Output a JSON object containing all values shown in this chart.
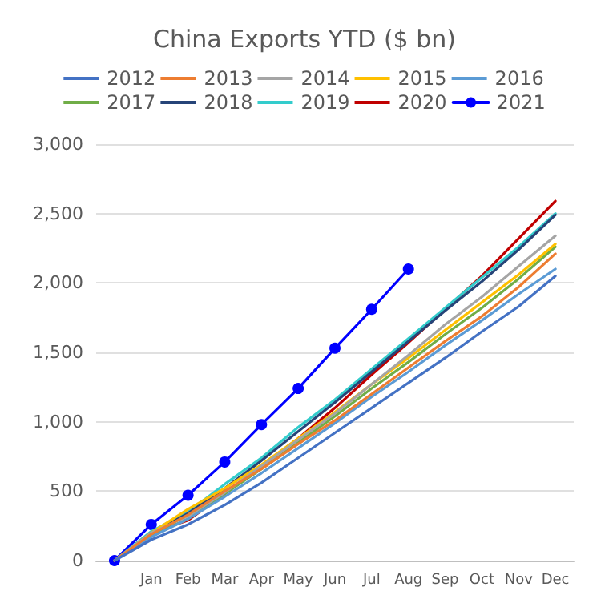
{
  "chart_data": {
    "type": "line",
    "title": "China Exports YTD ($ bn)",
    "categories": [
      null,
      "Jan",
      "Feb",
      "Mar",
      "Apr",
      "May",
      "Jun",
      "Jul",
      "Aug",
      "Sep",
      "Oct",
      "Nov",
      "Dec"
    ],
    "ylim": [
      0,
      3000
    ],
    "yticks": [
      0,
      500,
      {
        "value": 1000,
        "label": "1,000"
      },
      {
        "value": 1500,
        "label": "1,500"
      },
      {
        "value": 2000,
        "label": "2,000"
      },
      {
        "value": 2500,
        "label": "2,500"
      },
      {
        "value": 3000,
        "label": "3,000"
      }
    ],
    "grid": "y",
    "legend": "top",
    "line_style": "solid",
    "series": [
      {
        "name": "2012",
        "color": "#4472c4",
        "marker": "none",
        "values": [
          0,
          150,
          260,
          400,
          560,
          740,
          920,
          1100,
          1280,
          1460,
          1650,
          1830,
          2050
        ]
      },
      {
        "name": "2013",
        "color": "#ed7d31",
        "marker": "none",
        "values": [
          0,
          190,
          330,
          500,
          660,
          840,
          1010,
          1200,
          1390,
          1580,
          1760,
          1970,
          2210
        ]
      },
      {
        "name": "2014",
        "color": "#a5a5a5",
        "marker": "none",
        "values": [
          0,
          200,
          320,
          490,
          680,
          870,
          1060,
          1270,
          1480,
          1700,
          1900,
          2120,
          2340
        ]
      },
      {
        "name": "2015",
        "color": "#ffc000",
        "marker": "none",
        "values": [
          0,
          200,
          370,
          520,
          690,
          880,
          1070,
          1270,
          1460,
          1660,
          1860,
          2060,
          2280
        ]
      },
      {
        "name": "2016",
        "color": "#5b9bd5",
        "marker": "none",
        "values": [
          0,
          170,
          300,
          460,
          630,
          810,
          990,
          1180,
          1360,
          1550,
          1730,
          1920,
          2100
        ]
      },
      {
        "name": "2017",
        "color": "#70ad47",
        "marker": "none",
        "values": [
          0,
          180,
          300,
          480,
          660,
          850,
          1040,
          1240,
          1430,
          1630,
          1820,
          2030,
          2260
        ]
      },
      {
        "name": "2018",
        "color": "#264478",
        "marker": "none",
        "values": [
          0,
          200,
          340,
          520,
          720,
          930,
          1140,
          1360,
          1580,
          1800,
          2010,
          2240,
          2490
        ]
      },
      {
        "name": "2019",
        "color": "#33cccc",
        "marker": "none",
        "values": [
          0,
          210,
          350,
          550,
          740,
          960,
          1160,
          1380,
          1600,
          1820,
          2040,
          2260,
          2500
        ]
      },
      {
        "name": "2020",
        "color": "#c00000",
        "marker": "none",
        "values": [
          0,
          200,
          290,
          480,
          680,
          880,
          1100,
          1340,
          1570,
          1810,
          2050,
          2320,
          2590
        ]
      },
      {
        "name": "2021",
        "color": "#0000ff",
        "marker": "circle",
        "values": [
          0,
          260,
          470,
          710,
          980,
          1240,
          1530,
          1810,
          2100,
          null,
          null,
          null,
          null
        ]
      }
    ]
  }
}
